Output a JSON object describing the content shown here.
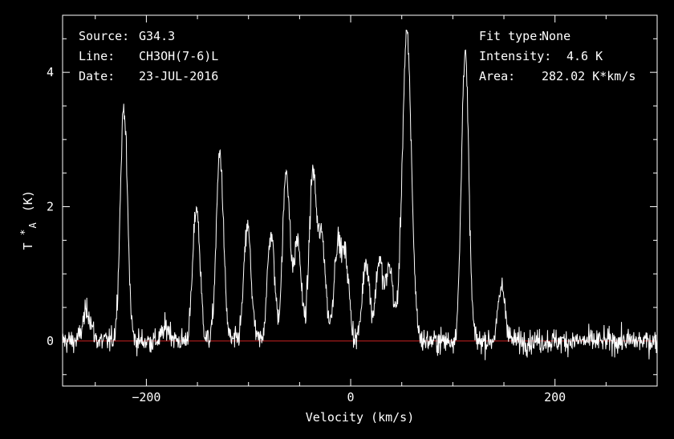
{
  "header": {
    "left": [
      {
        "key": "Source:",
        "value": "G34.3"
      },
      {
        "key": "Line:",
        "value": "CH3OH(7-6)L"
      },
      {
        "key": "Date:",
        "value": "23-JUL-2016"
      }
    ],
    "right": [
      {
        "key": "Fit type:",
        "value": "None"
      },
      {
        "key": "Intensity:",
        "value": "4.6 K"
      },
      {
        "key": "Area:",
        "value": "282.02 K*km/s"
      }
    ]
  },
  "colors": {
    "background": "#000000",
    "foreground": "#ffffff",
    "baseline": "#cc2222"
  },
  "chart_data": {
    "type": "line",
    "xlabel": "Velocity (km/s)",
    "ylabel_main": "T",
    "ylabel_sub": "A",
    "ylabel_sup": "*",
    "ylabel_unit": "(K)",
    "xlim": [
      -282,
      300
    ],
    "ylim": [
      -0.67,
      4.85
    ],
    "xticks": [
      -200,
      0,
      200
    ],
    "xtick_labels": [
      "−200",
      "0",
      "200"
    ],
    "yticks": [
      0,
      2,
      4
    ],
    "ytick_labels": [
      "0",
      "2",
      "4"
    ],
    "x_minor_step": 50,
    "y_minor_step": 0.5,
    "baseline_y": 0,
    "noise_rms": 0.09,
    "peaks": [
      {
        "v": -258,
        "amp": 0.45,
        "width": 4
      },
      {
        "v": -222,
        "amp": 3.5,
        "width": 3.5
      },
      {
        "v": -180,
        "amp": 0.2,
        "width": 4
      },
      {
        "v": -151,
        "amp": 2.0,
        "width": 3.5
      },
      {
        "v": -128,
        "amp": 2.8,
        "width": 3.5
      },
      {
        "v": -101,
        "amp": 1.7,
        "width": 3.5
      },
      {
        "v": -78,
        "amp": 1.6,
        "width": 3.5
      },
      {
        "v": -63,
        "amp": 2.55,
        "width": 3.5
      },
      {
        "v": -52,
        "amp": 1.5,
        "width": 3.5
      },
      {
        "v": -37,
        "amp": 2.5,
        "width": 3.5
      },
      {
        "v": -28,
        "amp": 1.5,
        "width": 3.5
      },
      {
        "v": -13,
        "amp": 1.4,
        "width": 3.5
      },
      {
        "v": -5,
        "amp": 1.2,
        "width": 3.5
      },
      {
        "v": 15,
        "amp": 1.2,
        "width": 3.5
      },
      {
        "v": 28,
        "amp": 1.2,
        "width": 3.5
      },
      {
        "v": 38,
        "amp": 1.1,
        "width": 3.5
      },
      {
        "v": 55,
        "amp": 4.55,
        "width": 4.5
      },
      {
        "v": 112,
        "amp": 4.35,
        "width": 3.5
      },
      {
        "v": 148,
        "amp": 0.8,
        "width": 3.5
      }
    ]
  }
}
